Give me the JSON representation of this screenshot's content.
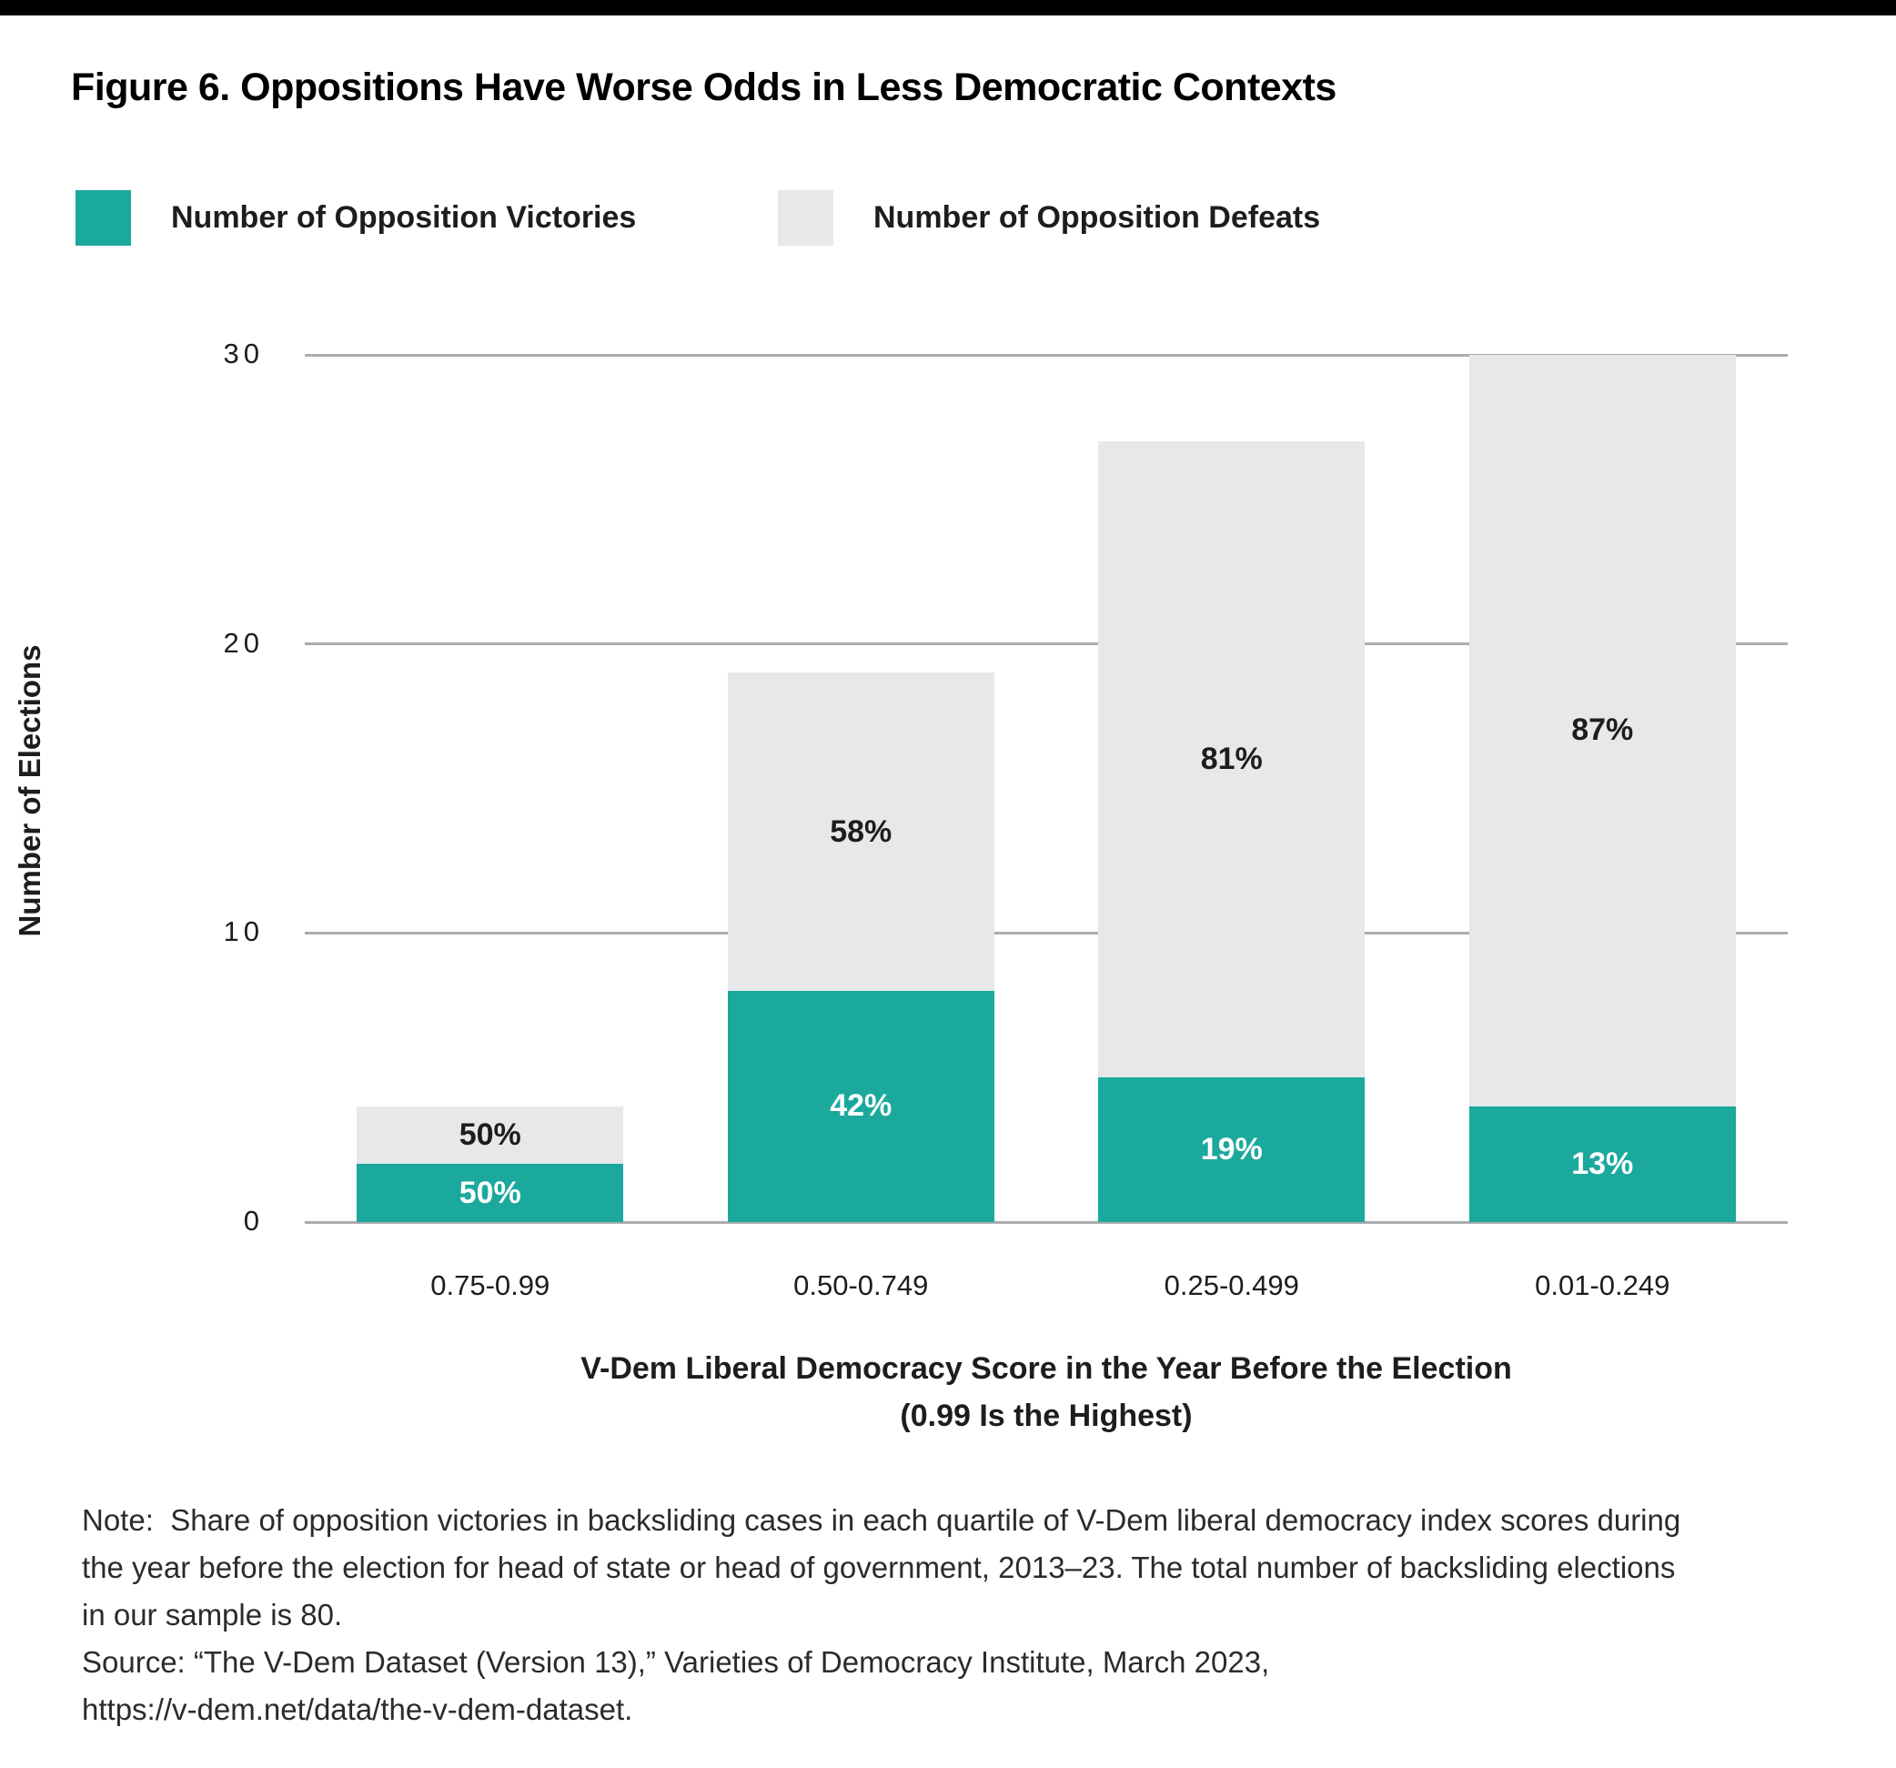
{
  "title": "Figure 6. Oppositions Have Worse Odds in Less Democratic Contexts",
  "chart_data": {
    "type": "bar",
    "stacked": true,
    "categories": [
      "0.75-0.99",
      "0.50-0.749",
      "0.25-0.499",
      "0.01-0.249"
    ],
    "series": [
      {
        "name": "Number of Opposition Victories",
        "color": "#1aa99c",
        "label_color": "#ffffff",
        "values": [
          2,
          8,
          5,
          4
        ],
        "labels": [
          "50%",
          "42%",
          "19%",
          "13%"
        ]
      },
      {
        "name": "Number of Opposition Defeats",
        "color": "#e7e8e9",
        "label_color": "#1d1d1b",
        "values": [
          2,
          11,
          22,
          26
        ],
        "labels": [
          "50%",
          "58%",
          "81%",
          "87%"
        ]
      }
    ],
    "totals": [
      4,
      19,
      27,
      30
    ],
    "title": "Figure 6. Oppositions Have Worse Odds in Less Democratic Contexts",
    "ylabel": "Number of Elections",
    "xlabel_line1": "V-Dem Liberal Democracy Score in the Year Before the Election",
    "xlabel_line2": "(0.99 Is the Highest)",
    "yticks": [
      0,
      10,
      20,
      30
    ],
    "ylim": [
      0,
      30
    ],
    "grid": "horizontal",
    "grid_color": "#aaacae",
    "legend_position": "top-left"
  },
  "notes": {
    "lines": [
      "Note:  Share of opposition victories in backsliding cases in each quartile of V-Dem liberal democracy index scores during",
      "the year before the election for head of state or head of government, 2013–23. The total number of backsliding elections",
      "in our sample is 80.",
      "Source: “The V-Dem Dataset (Version 13),” Varieties of Democracy Institute, March 2023,",
      "https://v-dem.net/data/the-v-dem-dataset."
    ]
  }
}
